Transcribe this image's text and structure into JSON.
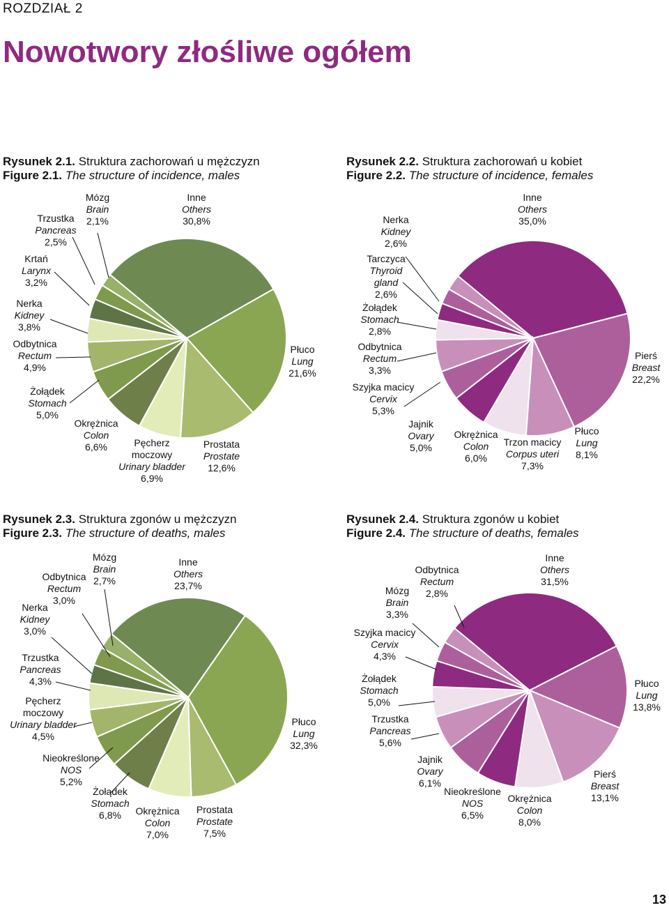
{
  "chapter": "ROZDZIAŁ 2",
  "title": "Nowotwory złośliwe ogółem",
  "page_number": "13",
  "chart_data": [
    {
      "type": "pie",
      "caption_pl_label": "Rysunek 2.1.",
      "caption_pl_text": "Struktura zachorowań u mężczyzn",
      "caption_en_label": "Figure 2.1.",
      "caption_en_text": "The structure of incidence, males",
      "palette": [
        "#6e8a52",
        "#8aa653",
        "#a9bb6f",
        "#e2ecb9",
        "#6f7f4a",
        "#7f9a4c",
        "#a3b56a",
        "#dde8b4",
        "#5e7447",
        "#98b06a"
      ],
      "slices": [
        {
          "pl": "Inne",
          "en": "Others",
          "value": 30.8,
          "label": "30,8%",
          "color": "#6e8a52"
        },
        {
          "pl": "Płuco",
          "en": "Lung",
          "value": 21.6,
          "label": "21,6%",
          "color": "#8aa653"
        },
        {
          "pl": "Prostata",
          "en": "Prostate",
          "value": 12.6,
          "label": "12,6%",
          "color": "#a9bb6f"
        },
        {
          "pl": "Pęcherz moczowy",
          "en": "Urinary bladder",
          "value": 6.9,
          "label": "6,9%",
          "color": "#e2ecb9"
        },
        {
          "pl": "Okrężnica",
          "en": "Colon",
          "value": 6.6,
          "label": "6,6%",
          "color": "#6f7f4a"
        },
        {
          "pl": "Żołądek",
          "en": "Stomach",
          "value": 5.0,
          "label": "5,0%",
          "color": "#7f9a4c"
        },
        {
          "pl": "Odbytnica",
          "en": "Rectum",
          "value": 4.9,
          "label": "4,9%",
          "color": "#a3b56a"
        },
        {
          "pl": "Nerka",
          "en": "Kidney",
          "value": 3.8,
          "label": "3,8%",
          "color": "#dde8b4"
        },
        {
          "pl": "Krtań",
          "en": "Larynx",
          "value": 3.2,
          "label": "3,2%",
          "color": "#5e7447"
        },
        {
          "pl": "Trzustka",
          "en": "Pancreas",
          "value": 2.5,
          "label": "2,5%",
          "color": "#7f9a4c"
        },
        {
          "pl": "Mózg",
          "en": "Brain",
          "value": 2.1,
          "label": "2,1%",
          "color": "#98b06a"
        }
      ]
    },
    {
      "type": "pie",
      "caption_pl_label": "Rysunek 2.2.",
      "caption_pl_text": "Struktura zachorowań u kobiet",
      "caption_en_label": "Figure 2.2.",
      "caption_en_text": "The structure of incidence, females",
      "slices": [
        {
          "pl": "Inne",
          "en": "Others",
          "value": 35.0,
          "label": "35,0%",
          "color": "#8e2a80"
        },
        {
          "pl": "Pierś",
          "en": "Breast",
          "value": 22.2,
          "label": "22,2%",
          "color": "#ad5f9c"
        },
        {
          "pl": "Płuco",
          "en": "Lung",
          "value": 8.1,
          "label": "8,1%",
          "color": "#c98fbb"
        },
        {
          "pl": "Trzon macicy",
          "en": "Corpus uteri",
          "value": 7.3,
          "label": "7,3%",
          "color": "#efe2ec"
        },
        {
          "pl": "Okrężnica",
          "en": "Colon",
          "value": 6.0,
          "label": "6,0%",
          "color": "#8e2a80"
        },
        {
          "pl": "Jajnik",
          "en": "Ovary",
          "value": 5.0,
          "label": "5,0%",
          "color": "#ad5f9c"
        },
        {
          "pl": "Szyjka macicy",
          "en": "Cervix",
          "value": 5.3,
          "label": "5,3%",
          "color": "#c98fbb"
        },
        {
          "pl": "Odbytnica",
          "en": "Rectum",
          "value": 3.3,
          "label": "3,3%",
          "color": "#efe2ec"
        },
        {
          "pl": "Żołądek",
          "en": "Stomach",
          "value": 2.8,
          "label": "2,8%",
          "color": "#8e2a80"
        },
        {
          "pl": "Tarczyca",
          "en": "Thyroid gland",
          "value": 2.6,
          "label": "2,6%",
          "color": "#ad5f9c"
        },
        {
          "pl": "Nerka",
          "en": "Kidney",
          "value": 2.6,
          "label": "2,6%",
          "color": "#c98fbb"
        }
      ]
    },
    {
      "type": "pie",
      "caption_pl_label": "Rysunek 2.3.",
      "caption_pl_text": "Struktura zgonów u mężczyzn",
      "caption_en_label": "Figure 2.3.",
      "caption_en_text": "The structure of deaths, males",
      "slices": [
        {
          "pl": "Inne",
          "en": "Others",
          "value": 23.7,
          "label": "23,7%",
          "color": "#6e8a52"
        },
        {
          "pl": "Płuco",
          "en": "Lung",
          "value": 32.3,
          "label": "32,3%",
          "color": "#8aa653"
        },
        {
          "pl": "Prostata",
          "en": "Prostate",
          "value": 7.5,
          "label": "7,5%",
          "color": "#a9bb6f"
        },
        {
          "pl": "Okrężnica",
          "en": "Colon",
          "value": 7.0,
          "label": "7,0%",
          "color": "#e2ecb9"
        },
        {
          "pl": "Żołądek",
          "en": "Stomach",
          "value": 6.8,
          "label": "6,8%",
          "color": "#6f7f4a"
        },
        {
          "pl": "Nieokreślone",
          "en": "NOS",
          "value": 5.2,
          "label": "5,2%",
          "color": "#7f9a4c"
        },
        {
          "pl": "Pęcherz moczowy",
          "en": "Urinary bladder",
          "value": 4.5,
          "label": "4,5%",
          "color": "#a3b56a"
        },
        {
          "pl": "Trzustka",
          "en": "Pancreas",
          "value": 4.3,
          "label": "4,3%",
          "color": "#dde8b4"
        },
        {
          "pl": "Nerka",
          "en": "Kidney",
          "value": 3.0,
          "label": "3,0%",
          "color": "#5e7447"
        },
        {
          "pl": "Odbytnica",
          "en": "Rectum",
          "value": 3.0,
          "label": "3,0%",
          "color": "#7f9a4c"
        },
        {
          "pl": "Mózg",
          "en": "Brain",
          "value": 2.7,
          "label": "2,7%",
          "color": "#98b06a"
        }
      ]
    },
    {
      "type": "pie",
      "caption_pl_label": "Rysunek 2.4.",
      "caption_pl_text": "Struktura zgonów u kobiet",
      "caption_en_label": "Figure 2.4.",
      "caption_en_text": "The structure of deaths, females",
      "slices": [
        {
          "pl": "Inne",
          "en": "Others",
          "value": 31.5,
          "label": "31,5%",
          "color": "#8e2a80"
        },
        {
          "pl": "Płuco",
          "en": "Lung",
          "value": 13.8,
          "label": "13,8%",
          "color": "#ad5f9c"
        },
        {
          "pl": "Pierś",
          "en": "Breast",
          "value": 13.1,
          "label": "13,1%",
          "color": "#c98fbb"
        },
        {
          "pl": "Okrężnica",
          "en": "Colon",
          "value": 8.0,
          "label": "8,0%",
          "color": "#efe2ec"
        },
        {
          "pl": "Nieokreślone",
          "en": "NOS",
          "value": 6.5,
          "label": "6,5%",
          "color": "#8e2a80"
        },
        {
          "pl": "Jajnik",
          "en": "Ovary",
          "value": 6.1,
          "label": "6,1%",
          "color": "#ad5f9c"
        },
        {
          "pl": "Trzustka",
          "en": "Pancreas",
          "value": 5.6,
          "label": "5,6%",
          "color": "#c98fbb"
        },
        {
          "pl": "Żołądek",
          "en": "Stomach",
          "value": 5.0,
          "label": "5,0%",
          "color": "#efe2ec"
        },
        {
          "pl": "Szyjka macicy",
          "en": "Cervix",
          "value": 4.3,
          "label": "4,3%",
          "color": "#8e2a80"
        },
        {
          "pl": "Mózg",
          "en": "Brain",
          "value": 3.3,
          "label": "3,3%",
          "color": "#ad5f9c"
        },
        {
          "pl": "Odbytnica",
          "en": "Rectum",
          "value": 2.8,
          "label": "2,8%",
          "color": "#c98fbb"
        }
      ]
    }
  ]
}
